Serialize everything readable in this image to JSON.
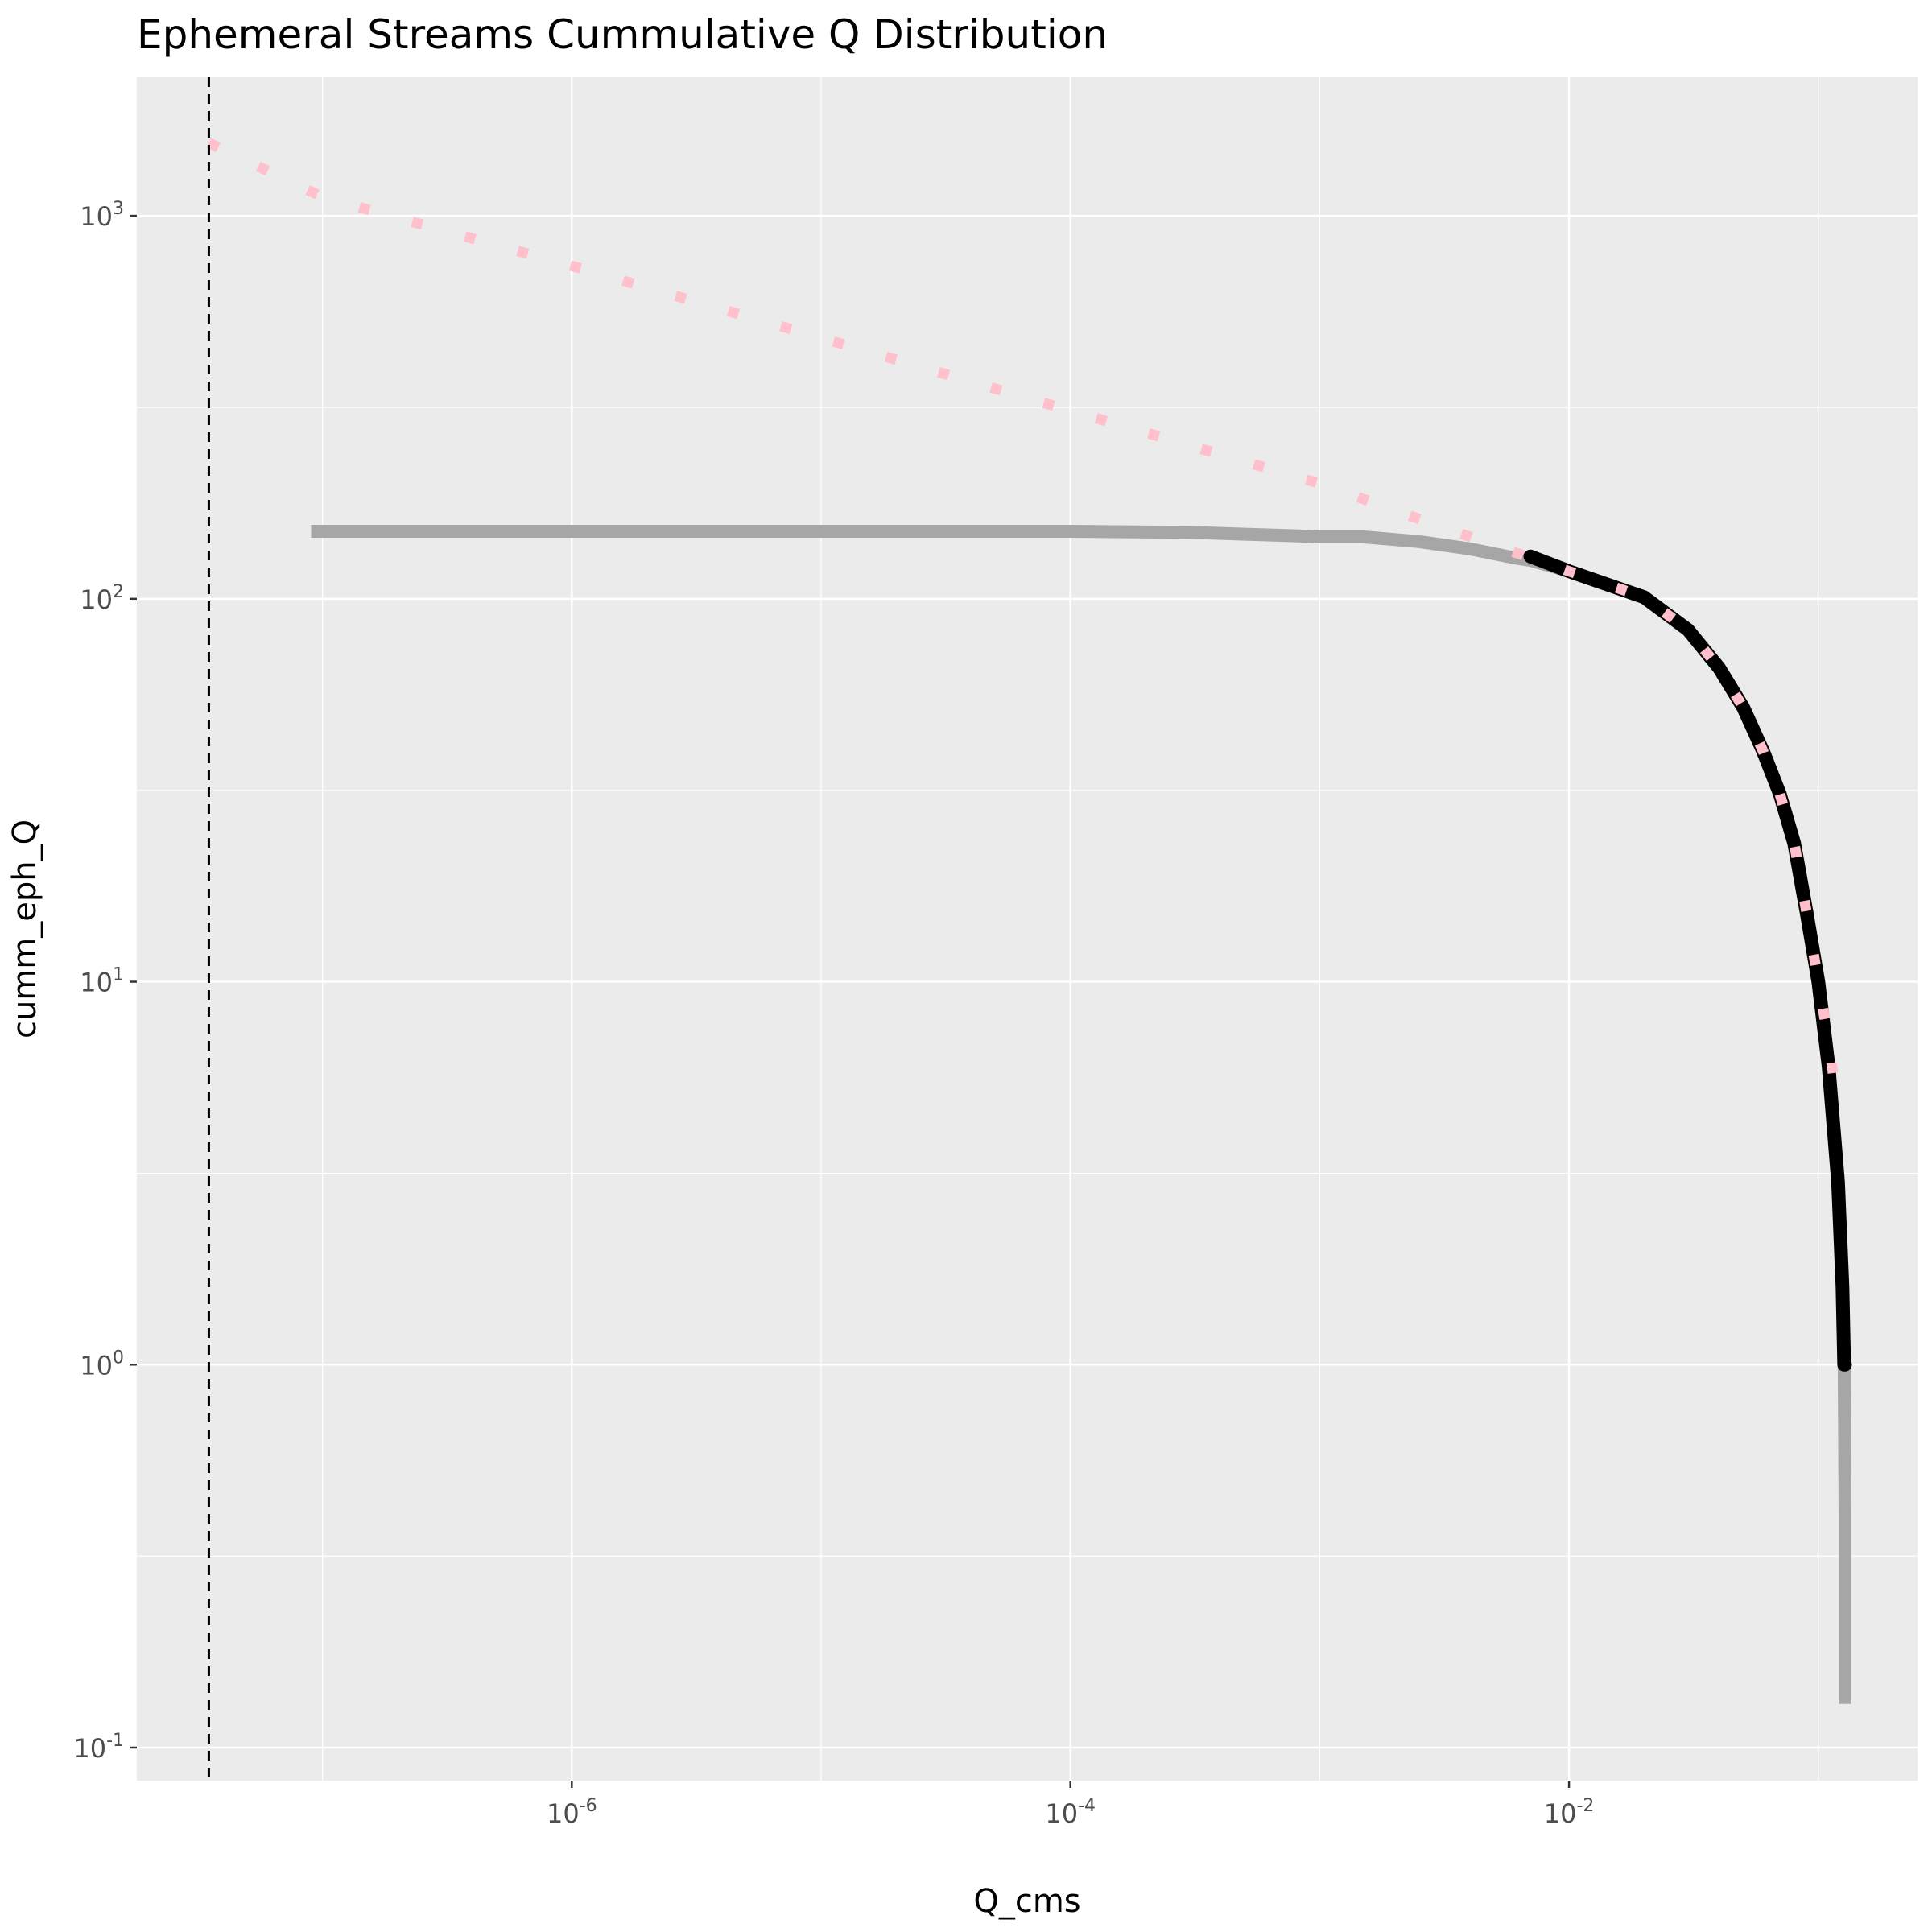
{
  "chart_data": {
    "type": "line",
    "title": "Ephemeral Streams Cummulative Q Distribution",
    "xlabel": "Q_cms",
    "ylabel": "cumm_eph_Q",
    "x_scale": "log10",
    "y_scale": "log10",
    "xlim": [
      1.8e-08,
      0.25
    ],
    "ylim": [
      0.082,
      2300
    ],
    "x_ticks": [
      {
        "value": 1e-06,
        "base": "10",
        "exp": "-6"
      },
      {
        "value": 0.0001,
        "base": "10",
        "exp": "-4"
      },
      {
        "value": 0.01,
        "base": "10",
        "exp": "-2"
      }
    ],
    "x_minor_ticks": [
      1e-07,
      1e-05,
      0.001,
      0.1
    ],
    "y_ticks": [
      {
        "value": 0.1,
        "base": "10",
        "exp": "-1"
      },
      {
        "value": 1,
        "base": "10",
        "exp": "0"
      },
      {
        "value": 10,
        "base": "10",
        "exp": "1"
      },
      {
        "value": 100,
        "base": "10",
        "exp": "2"
      },
      {
        "value": 1000,
        "base": "10",
        "exp": "3"
      }
    ],
    "y_minor_ticks": [
      0.316,
      3.16,
      31.6,
      316
    ],
    "grid": true,
    "panel_background": "#ebebeb",
    "gridline_color": "#ffffff",
    "vline": {
      "x": 3.5e-08,
      "color": "#000000",
      "style": "dashed"
    },
    "series": [
      {
        "color": "#a6a6a6",
        "style": "solid",
        "x": [
          9e-08,
          1e-06,
          1e-05,
          0.0001,
          0.0003,
          0.0008,
          0.001,
          0.0015,
          0.0025,
          0.004,
          0.006,
          0.007,
          0.01,
          0.02,
          0.03,
          0.04,
          0.05,
          0.06,
          0.07,
          0.08,
          0.09,
          0.1,
          0.11,
          0.12,
          0.125,
          0.127,
          0.128,
          0.128
        ],
        "y": [
          150,
          150,
          150,
          150,
          149,
          146,
          145,
          145,
          141,
          135,
          128,
          126,
          118,
          101,
          83,
          66,
          52,
          40,
          31,
          23,
          15,
          10,
          6,
          3,
          1.6,
          1.0,
          0.4,
          0.13
        ]
      },
      {
        "color": "#000000",
        "style": "solid",
        "x": [
          0.007,
          0.01,
          0.02,
          0.03,
          0.04,
          0.05,
          0.06,
          0.07,
          0.08,
          0.09,
          0.1,
          0.11,
          0.12,
          0.125,
          0.127,
          0.128
        ],
        "y": [
          129,
          118,
          101,
          83,
          66,
          52,
          40,
          31,
          23,
          15,
          10,
          6,
          3,
          1.6,
          1.0,
          1.0
        ]
      },
      {
        "color": "#ffc0cb",
        "style": "dotted",
        "x": [
          3.5e-08,
          1e-07,
          1e-06,
          1e-05,
          0.0001,
          0.001,
          0.003,
          0.01,
          0.02,
          0.03,
          0.04,
          0.05,
          0.06,
          0.07,
          0.08,
          0.09,
          0.1,
          0.11,
          0.12
        ],
        "y": [
          1550,
          1120,
          740,
          480,
          310,
          200,
          155,
          118,
          101,
          83,
          66,
          52,
          40,
          31,
          23,
          15,
          10,
          7,
          4.6
        ]
      }
    ]
  }
}
